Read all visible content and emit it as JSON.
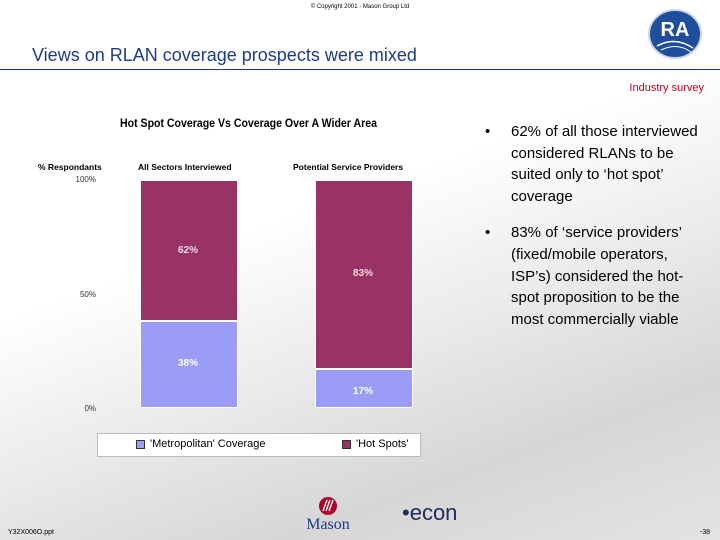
{
  "header": {
    "copyright": "© Copyright 2001 - Mason Group Ltd",
    "title": "Views on RLAN coverage prospects were mixed",
    "logo_text": "RA",
    "survey_label": "Industry survey"
  },
  "chart_data": {
    "type": "bar",
    "stacked": true,
    "title": "Hot Spot Coverage Vs Coverage Over A Wider Area",
    "ylabel": "% Respondants",
    "categories": [
      "All Sectors Interviewed",
      "Potential Service Providers"
    ],
    "ylim": [
      0,
      100
    ],
    "yticks": [
      "100%",
      "50%",
      "0%"
    ],
    "series": [
      {
        "name": "'Metropolitan' Coverage",
        "values": [
          38,
          17
        ],
        "labels": [
          "38%",
          "17%"
        ],
        "color": "#9a9cf5"
      },
      {
        "name": "'Hot Spots'",
        "values": [
          62,
          83
        ],
        "labels": [
          "62%",
          "83%"
        ],
        "color": "#993366"
      }
    ]
  },
  "bullets": [
    {
      "mark": "•",
      "text": "62% of all those interviewed considered RLANs to be suited only to ‘hot spot’ coverage"
    },
    {
      "mark": "•",
      "text": "83% of ‘service providers’ (fixed/mobile operators, ISP’s) considered the hot-spot proposition to be the most commercially viable"
    }
  ],
  "footer": {
    "file_ref": "Y32X006O.ppt",
    "page_number": "-38",
    "mason_text": "Mason",
    "econ_text": "•econ"
  }
}
